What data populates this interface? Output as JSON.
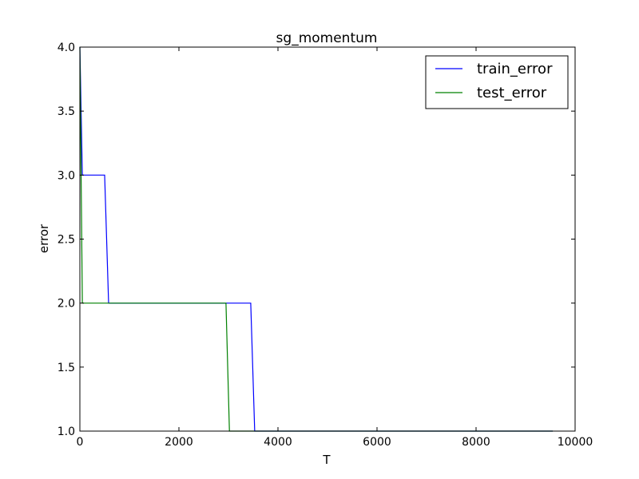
{
  "chart_data": {
    "type": "line",
    "title": "sg_momentum",
    "xlabel": "T",
    "ylabel": "error",
    "xlim": [
      0,
      10000
    ],
    "ylim": [
      1.0,
      4.0
    ],
    "xticks": [
      "0",
      "2000",
      "4000",
      "6000",
      "8000",
      "10000"
    ],
    "yticks": [
      "1.0",
      "1.5",
      "2.0",
      "2.5",
      "3.0",
      "3.5",
      "4.0"
    ],
    "legend_position": "top-right",
    "grid": false,
    "series": [
      {
        "name": "train_error",
        "color": "#0000ff",
        "x": [
          0,
          50,
          500,
          580,
          3450,
          3530,
          9550
        ],
        "y": [
          4.0,
          3.0,
          3.0,
          2.0,
          2.0,
          1.0,
          1.0
        ]
      },
      {
        "name": "test_error",
        "color": "#008000",
        "x": [
          0,
          50,
          2950,
          3020,
          9550
        ],
        "y": [
          4.0,
          2.0,
          2.0,
          1.0,
          1.0
        ]
      }
    ]
  }
}
